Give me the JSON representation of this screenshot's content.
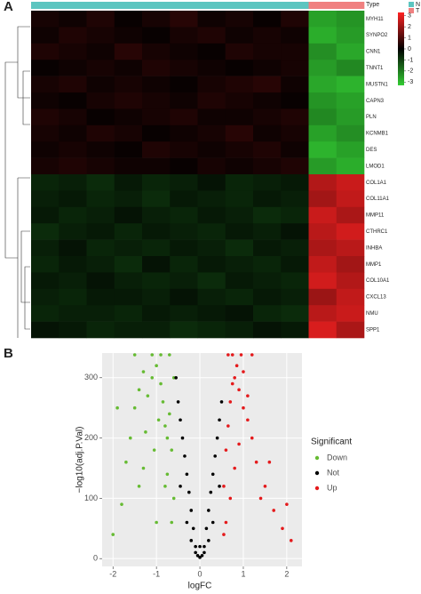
{
  "chart_data": [
    {
      "type": "heatmap",
      "panel": "A",
      "legend_title": "Type",
      "type_legend": [
        {
          "name": "N",
          "color": "#5cc5c0"
        },
        {
          "name": "T",
          "color": "#f08080"
        }
      ],
      "column_types": [
        "N",
        "N",
        "N",
        "N",
        "N",
        "N",
        "N",
        "N",
        "N",
        "N",
        "T",
        "T"
      ],
      "gene_labels": [
        "MYH11",
        "SYNPO2",
        "CNN1",
        "TNNT1",
        "MUSTN1",
        "CAPN3",
        "PLN",
        "KCNMB1",
        "DES",
        "LMOD1",
        "COL1A1",
        "COL11A1",
        "MMP11",
        "CTHRC1",
        "INHBA",
        "MMP1",
        "COL10A1",
        "CXCL13",
        "NMU",
        "SPP1"
      ],
      "z": [
        [
          0.3,
          0.2,
          0.4,
          0.1,
          0.3,
          0.5,
          0.2,
          0.3,
          0.1,
          0.4,
          -2.6,
          -2.4
        ],
        [
          0.2,
          0.4,
          0.3,
          0.2,
          0.1,
          0.3,
          0.4,
          0.2,
          0.3,
          0.2,
          -2.8,
          -2.5
        ],
        [
          0.4,
          0.3,
          0.2,
          0.5,
          0.3,
          0.2,
          0.1,
          0.4,
          0.3,
          0.3,
          -2.3,
          -2.7
        ],
        [
          0.1,
          0.2,
          0.3,
          0.2,
          0.4,
          0.3,
          0.2,
          0.1,
          0.2,
          0.3,
          -2.5,
          -2.2
        ],
        [
          0.3,
          0.4,
          0.2,
          0.3,
          0.2,
          0.1,
          0.3,
          0.4,
          0.5,
          0.2,
          -2.7,
          -2.9
        ],
        [
          0.2,
          0.1,
          0.3,
          0.4,
          0.3,
          0.2,
          0.4,
          0.3,
          0.2,
          0.1,
          -2.4,
          -2.6
        ],
        [
          0.4,
          0.3,
          0.1,
          0.2,
          0.3,
          0.4,
          0.2,
          0.2,
          0.3,
          0.4,
          -2.2,
          -2.5
        ],
        [
          0.3,
          0.2,
          0.4,
          0.3,
          0.1,
          0.2,
          0.3,
          0.5,
          0.2,
          0.3,
          -2.6,
          -2.3
        ],
        [
          0.2,
          0.3,
          0.2,
          0.1,
          0.4,
          0.3,
          0.2,
          0.3,
          0.4,
          0.2,
          -2.9,
          -2.6
        ],
        [
          0.3,
          0.4,
          0.3,
          0.2,
          0.2,
          0.1,
          0.3,
          0.2,
          0.3,
          0.4,
          -2.5,
          -2.8
        ],
        [
          -0.6,
          -0.5,
          -0.7,
          -0.4,
          -0.6,
          -0.5,
          -0.3,
          -0.6,
          -0.5,
          -0.4,
          2.3,
          2.6
        ],
        [
          -0.5,
          -0.4,
          -0.6,
          -0.5,
          -0.7,
          -0.4,
          -0.5,
          -0.6,
          -0.4,
          -0.5,
          2.1,
          2.5
        ],
        [
          -0.4,
          -0.6,
          -0.5,
          -0.3,
          -0.5,
          -0.6,
          -0.4,
          -0.5,
          -0.7,
          -0.6,
          2.6,
          2.2
        ],
        [
          -0.7,
          -0.5,
          -0.4,
          -0.6,
          -0.4,
          -0.5,
          -0.6,
          -0.4,
          -0.5,
          -0.3,
          2.4,
          2.7
        ],
        [
          -0.5,
          -0.3,
          -0.6,
          -0.5,
          -0.6,
          -0.4,
          -0.5,
          -0.7,
          -0.4,
          -0.5,
          2.2,
          2.4
        ],
        [
          -0.6,
          -0.4,
          -0.5,
          -0.7,
          -0.3,
          -0.6,
          -0.4,
          -0.5,
          -0.6,
          -0.4,
          2.5,
          2.1
        ],
        [
          -0.4,
          -0.5,
          -0.3,
          -0.5,
          -0.6,
          -0.5,
          -0.7,
          -0.4,
          -0.5,
          -0.6,
          2.7,
          2.3
        ],
        [
          -0.5,
          -0.6,
          -0.4,
          -0.4,
          -0.5,
          -0.3,
          -0.5,
          -0.6,
          -0.4,
          -0.5,
          2.0,
          2.5
        ],
        [
          -0.6,
          -0.5,
          -0.5,
          -0.6,
          -0.4,
          -0.5,
          -0.4,
          -0.3,
          -0.6,
          -0.7,
          2.4,
          2.6
        ],
        [
          -0.3,
          -0.4,
          -0.6,
          -0.5,
          -0.5,
          -0.7,
          -0.6,
          -0.5,
          -0.3,
          -0.4,
          2.8,
          2.2
        ]
      ],
      "zlim": [
        -3.3,
        3.3
      ],
      "colorbar_ticks": [
        3,
        2,
        1,
        0,
        -1,
        -2,
        -3
      ],
      "colors": {
        "low": "#33cc33",
        "mid": "#000000",
        "high": "#ff2222"
      }
    },
    {
      "type": "scatter",
      "panel": "B",
      "xlabel": "logFC",
      "ylabel": "−log10(adj.P.Val)",
      "legend_title": "Significant",
      "xlim": [
        -2.25,
        2.35
      ],
      "ylim": [
        -13,
        341
      ],
      "xticks": [
        -2,
        -1,
        0,
        1,
        2
      ],
      "yticks": [
        0,
        100,
        200,
        300
      ],
      "grid": true,
      "series": [
        {
          "name": "Down",
          "color": "#66bb33",
          "x": [
            -2.0,
            -1.8,
            -1.6,
            -1.5,
            -1.4,
            -1.3,
            -1.2,
            -1.1,
            -1.0,
            -0.9,
            -0.85,
            -0.8,
            -0.75,
            -0.7,
            -0.65,
            -0.6,
            -0.6,
            -1.7,
            -1.3,
            -1.0,
            -0.8,
            -1.5,
            -1.1,
            -0.9,
            -0.7,
            -1.9,
            -1.25,
            -0.95,
            -0.75,
            -0.65,
            -1.4,
            -1.05
          ],
          "values": [
            40,
            90,
            200,
            250,
            280,
            310,
            270,
            300,
            320,
            290,
            260,
            220,
            200,
            240,
            180,
            100,
            300,
            160,
            150,
            60,
            120,
            338,
            338,
            338,
            338,
            250,
            210,
            230,
            140,
            60,
            120,
            180
          ]
        },
        {
          "name": "Not",
          "color": "#000000",
          "x": [
            -0.55,
            -0.5,
            -0.45,
            -0.4,
            -0.35,
            -0.3,
            -0.25,
            -0.2,
            -0.15,
            -0.1,
            -0.05,
            0,
            0.05,
            0.1,
            0.15,
            0.2,
            0.25,
            0.3,
            0.35,
            0.4,
            0.45,
            0.5,
            -0.3,
            0.3,
            -0.1,
            0.1,
            0,
            -0.2,
            0.2,
            -0.45,
            0.45
          ],
          "values": [
            300,
            260,
            230,
            200,
            170,
            140,
            110,
            80,
            50,
            20,
            5,
            2,
            5,
            20,
            50,
            80,
            110,
            140,
            170,
            200,
            230,
            260,
            60,
            60,
            10,
            10,
            20,
            30,
            30,
            120,
            120
          ]
        },
        {
          "name": "Up",
          "color": "#e41a1c",
          "x": [
            0.55,
            0.6,
            0.65,
            0.7,
            0.75,
            0.8,
            0.85,
            0.9,
            1.0,
            1.1,
            1.2,
            1.3,
            1.5,
            1.7,
            1.9,
            2.1,
            0.6,
            0.7,
            0.8,
            0.9,
            1.0,
            1.1,
            1.4,
            0.65,
            0.75,
            0.95,
            1.2,
            0.55,
            1.6,
            2.0
          ],
          "values": [
            120,
            180,
            220,
            260,
            290,
            300,
            320,
            280,
            250,
            230,
            200,
            160,
            120,
            80,
            50,
            30,
            60,
            100,
            150,
            190,
            310,
            270,
            100,
            338,
            338,
            338,
            338,
            40,
            160,
            90
          ]
        }
      ]
    }
  ]
}
